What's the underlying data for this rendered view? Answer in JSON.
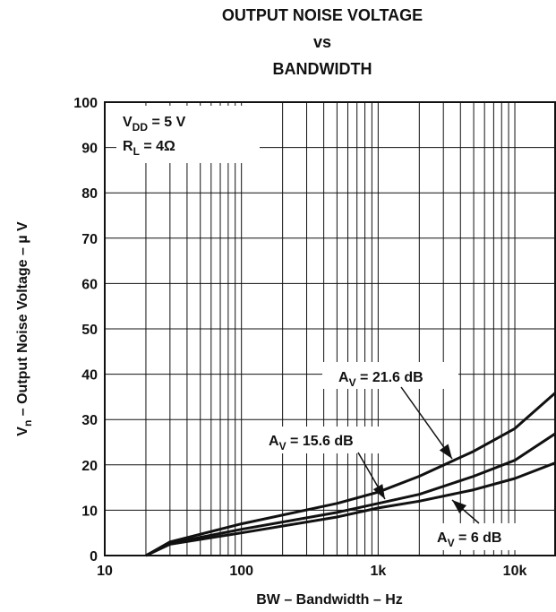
{
  "chart_data": {
    "type": "line",
    "title": [
      "OUTPUT NOISE VOLTAGE",
      "vs",
      "BANDWIDTH"
    ],
    "xlabel": "BW – Bandwidth – Hz",
    "ylabel": {
      "main": "V",
      "sub": "n",
      "rest": " – Output Noise Voltage – µ V"
    },
    "x_scale": "log",
    "xlim": [
      10,
      20000
    ],
    "ylim": [
      0,
      100
    ],
    "x_ticks": [
      10,
      100,
      1000,
      10000
    ],
    "x_tick_labels": [
      "10",
      "100",
      "1k",
      "10k"
    ],
    "y_ticks": [
      0,
      10,
      20,
      30,
      40,
      50,
      60,
      70,
      80,
      90,
      100
    ],
    "y_tick_labels": [
      "0",
      "10",
      "20",
      "30",
      "40",
      "50",
      "60",
      "70",
      "80",
      "90",
      "100"
    ],
    "grid": true,
    "conditions": [
      {
        "main": "V",
        "sub": "DD",
        "rest": " = 5 V"
      },
      {
        "main": "R",
        "sub": "L",
        "rest": " = 4Ω"
      }
    ],
    "series": [
      {
        "label_main": "A",
        "label_sub": "V",
        "label_rest": " = 21.6 dB",
        "x": [
          20,
          30,
          100,
          500,
          1000,
          2000,
          5000,
          10000,
          20000
        ],
        "y": [
          0,
          3,
          7,
          11.5,
          14,
          17.5,
          23,
          28,
          36
        ]
      },
      {
        "label_main": "A",
        "label_sub": "V",
        "label_rest": " = 15.6 dB",
        "x": [
          20,
          30,
          100,
          500,
          1000,
          2000,
          5000,
          10000,
          20000
        ],
        "y": [
          0,
          2.7,
          5.8,
          9.5,
          11.5,
          13.5,
          17.5,
          21,
          27
        ]
      },
      {
        "label_main": "A",
        "label_sub": "V",
        "label_rest": " = 6 dB",
        "x": [
          20,
          30,
          100,
          500,
          1000,
          2000,
          5000,
          10000,
          20000
        ],
        "y": [
          0,
          2.5,
          5,
          8.5,
          10.5,
          12,
          14.5,
          17,
          20.5
        ]
      }
    ]
  }
}
